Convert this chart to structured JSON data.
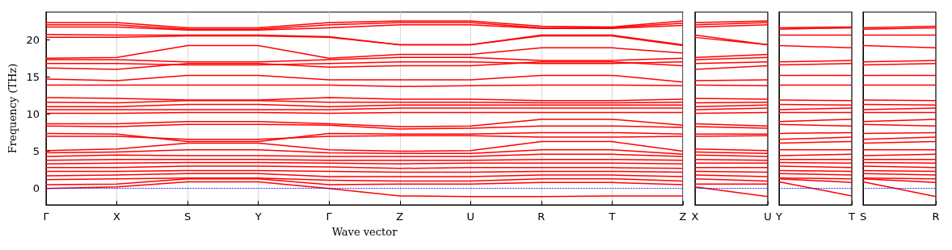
{
  "chart_data": [
    {
      "type": "line",
      "xlabel": "Wave vector",
      "ylabel": "Frequency (THz)",
      "ylim": [
        -2.2,
        23.7
      ],
      "yticks": [
        0,
        5,
        10,
        15,
        20
      ],
      "categories": [
        "Γ",
        "X",
        "S",
        "Y",
        "Γ",
        "Z",
        "U",
        "R",
        "T",
        "Z"
      ],
      "grid": "x",
      "marker": "none",
      "line_style": "solid",
      "ref_lines": [
        {
          "axis": "y",
          "value": 0,
          "color": "#0000ff",
          "line_style": "dotted"
        }
      ],
      "series": [
        {
          "color": "#ff0000",
          "values": [
            22.3,
            22.3,
            21.6,
            21.6,
            22.3,
            22.5,
            22.5,
            21.8,
            21.7,
            22.5
          ]
        },
        {
          "color": "#ff0000",
          "values": [
            22.0,
            22.0,
            21.4,
            21.4,
            22.0,
            22.3,
            22.3,
            21.6,
            21.6,
            22.2
          ]
        },
        {
          "color": "#ff0000",
          "values": [
            21.7,
            21.7,
            21.3,
            21.3,
            21.6,
            22.0,
            22.0,
            21.5,
            21.5,
            21.9
          ]
        },
        {
          "color": "#ff0000",
          "values": [
            20.7,
            20.6,
            20.6,
            20.6,
            20.4,
            19.3,
            19.3,
            20.6,
            20.6,
            19.3
          ]
        },
        {
          "color": "#ff0000",
          "values": [
            20.3,
            20.3,
            20.5,
            20.5,
            20.3,
            19.3,
            19.3,
            20.5,
            20.5,
            19.2
          ]
        },
        {
          "color": "#ff0000",
          "values": [
            17.5,
            17.6,
            19.2,
            19.2,
            17.5,
            18.0,
            18.0,
            18.9,
            18.9,
            18.2
          ]
        },
        {
          "color": "#ff0000",
          "values": [
            17.3,
            17.3,
            17.0,
            17.0,
            17.3,
            17.6,
            17.6,
            17.2,
            17.2,
            17.5
          ]
        },
        {
          "color": "#ff0000",
          "values": [
            16.8,
            16.8,
            16.6,
            16.6,
            16.8,
            17.0,
            17.0,
            16.8,
            16.8,
            17.0
          ]
        },
        {
          "color": "#ff0000",
          "values": [
            16.2,
            16.0,
            16.8,
            16.8,
            16.3,
            16.5,
            16.5,
            17.0,
            17.0,
            16.5
          ]
        },
        {
          "color": "#ff0000",
          "values": [
            14.7,
            14.5,
            15.2,
            15.2,
            14.6,
            14.6,
            14.6,
            15.2,
            15.2,
            14.3
          ]
        },
        {
          "color": "#ff0000",
          "values": [
            13.9,
            13.9,
            13.9,
            13.9,
            13.9,
            13.7,
            13.8,
            13.9,
            13.9,
            13.8
          ]
        },
        {
          "color": "#ff0000",
          "values": [
            12.2,
            12.1,
            11.9,
            11.9,
            12.2,
            12.0,
            12.0,
            11.8,
            11.8,
            12.0
          ]
        },
        {
          "color": "#ff0000",
          "values": [
            11.6,
            11.5,
            11.8,
            11.8,
            11.6,
            11.6,
            11.6,
            11.5,
            11.5,
            11.6
          ]
        },
        {
          "color": "#ff0000",
          "values": [
            11.0,
            11.0,
            11.3,
            11.3,
            11.0,
            11.2,
            11.2,
            11.2,
            11.2,
            11.2
          ]
        },
        {
          "color": "#ff0000",
          "values": [
            10.6,
            10.6,
            10.6,
            10.6,
            10.6,
            10.8,
            10.8,
            10.8,
            10.8,
            10.8
          ]
        },
        {
          "color": "#ff0000",
          "values": [
            10.1,
            10.1,
            10.2,
            10.2,
            10.1,
            10.2,
            10.2,
            10.2,
            10.2,
            10.2
          ]
        },
        {
          "color": "#ff0000",
          "values": [
            8.7,
            8.7,
            9.0,
            9.0,
            8.7,
            8.3,
            8.4,
            9.3,
            9.3,
            8.5
          ]
        },
        {
          "color": "#ff0000",
          "values": [
            8.4,
            8.3,
            8.6,
            8.6,
            8.5,
            8.0,
            8.1,
            8.4,
            8.4,
            8.2
          ]
        },
        {
          "color": "#ff0000",
          "values": [
            7.4,
            7.3,
            6.3,
            6.3,
            7.4,
            7.3,
            7.3,
            7.5,
            7.5,
            7.3
          ]
        },
        {
          "color": "#ff0000",
          "values": [
            7.0,
            7.0,
            6.6,
            6.6,
            7.0,
            7.1,
            7.1,
            6.9,
            6.9,
            7.0
          ]
        },
        {
          "color": "#ff0000",
          "values": [
            5.1,
            5.3,
            6.1,
            6.1,
            5.2,
            5.0,
            5.1,
            6.3,
            6.3,
            5.0
          ]
        },
        {
          "color": "#ff0000",
          "values": [
            4.8,
            4.9,
            5.2,
            5.2,
            4.8,
            4.7,
            4.7,
            5.2,
            5.2,
            4.6
          ]
        },
        {
          "color": "#ff0000",
          "values": [
            4.3,
            4.5,
            4.4,
            4.4,
            4.3,
            4.3,
            4.3,
            4.6,
            4.6,
            4.3
          ]
        },
        {
          "color": "#ff0000",
          "values": [
            3.8,
            3.9,
            3.9,
            3.9,
            3.8,
            3.8,
            3.8,
            3.9,
            3.9,
            3.8
          ]
        },
        {
          "color": "#ff0000",
          "values": [
            3.3,
            3.4,
            3.5,
            3.5,
            3.4,
            3.3,
            3.4,
            3.4,
            3.4,
            3.3
          ]
        },
        {
          "color": "#ff0000",
          "values": [
            2.8,
            2.8,
            3.0,
            3.0,
            2.9,
            2.7,
            2.8,
            2.8,
            2.8,
            2.7
          ]
        },
        {
          "color": "#ff0000",
          "values": [
            2.3,
            2.3,
            2.4,
            2.4,
            2.3,
            2.2,
            2.2,
            2.3,
            2.3,
            2.2
          ]
        },
        {
          "color": "#ff0000",
          "values": [
            1.7,
            1.8,
            2.0,
            2.0,
            1.6,
            1.6,
            1.6,
            1.8,
            1.8,
            1.6
          ]
        },
        {
          "color": "#ff0000",
          "values": [
            1.2,
            1.3,
            1.4,
            1.4,
            1.1,
            1.0,
            1.0,
            1.3,
            1.3,
            1.0
          ]
        },
        {
          "color": "#ff0000",
          "values": [
            0.5,
            0.6,
            1.3,
            1.3,
            0.5,
            0.6,
            0.6,
            0.8,
            0.8,
            0.5
          ]
        },
        {
          "color": "#ff0000",
          "values": [
            0.0,
            0.2,
            0.9,
            0.9,
            0.0,
            -1.0,
            -1.1,
            -1.1,
            -1.0,
            -1.0
          ]
        }
      ]
    },
    {
      "type": "line",
      "ylim": [
        -2.2,
        23.7
      ],
      "yticks": [
        0,
        5,
        10,
        15,
        20
      ],
      "categories": [
        "X",
        "U"
      ],
      "tick_labels": "x",
      "marker": "none",
      "line_style": "solid",
      "ref_lines": [
        {
          "axis": "y",
          "value": 0,
          "color": "#0000ff",
          "line_style": "dotted"
        }
      ],
      "series": [
        {
          "color": "#ff0000",
          "values": [
            22.3,
            22.5
          ]
        },
        {
          "color": "#ff0000",
          "values": [
            22.0,
            22.3
          ]
        },
        {
          "color": "#ff0000",
          "values": [
            21.7,
            22.0
          ]
        },
        {
          "color": "#ff0000",
          "values": [
            20.6,
            19.3
          ]
        },
        {
          "color": "#ff0000",
          "values": [
            20.3,
            19.3
          ]
        },
        {
          "color": "#ff0000",
          "values": [
            17.6,
            18.0
          ]
        },
        {
          "color": "#ff0000",
          "values": [
            17.3,
            17.6
          ]
        },
        {
          "color": "#ff0000",
          "values": [
            16.8,
            17.0
          ]
        },
        {
          "color": "#ff0000",
          "values": [
            16.0,
            16.5
          ]
        },
        {
          "color": "#ff0000",
          "values": [
            14.5,
            14.6
          ]
        },
        {
          "color": "#ff0000",
          "values": [
            13.9,
            13.8
          ]
        },
        {
          "color": "#ff0000",
          "values": [
            12.1,
            12.0
          ]
        },
        {
          "color": "#ff0000",
          "values": [
            11.5,
            11.6
          ]
        },
        {
          "color": "#ff0000",
          "values": [
            11.0,
            11.2
          ]
        },
        {
          "color": "#ff0000",
          "values": [
            10.6,
            10.8
          ]
        },
        {
          "color": "#ff0000",
          "values": [
            10.1,
            10.2
          ]
        },
        {
          "color": "#ff0000",
          "values": [
            8.7,
            8.4
          ]
        },
        {
          "color": "#ff0000",
          "values": [
            8.3,
            8.1
          ]
        },
        {
          "color": "#ff0000",
          "values": [
            7.3,
            7.3
          ]
        },
        {
          "color": "#ff0000",
          "values": [
            7.0,
            7.1
          ]
        },
        {
          "color": "#ff0000",
          "values": [
            5.3,
            5.1
          ]
        },
        {
          "color": "#ff0000",
          "values": [
            4.9,
            4.7
          ]
        },
        {
          "color": "#ff0000",
          "values": [
            4.5,
            4.3
          ]
        },
        {
          "color": "#ff0000",
          "values": [
            3.9,
            3.8
          ]
        },
        {
          "color": "#ff0000",
          "values": [
            3.4,
            3.4
          ]
        },
        {
          "color": "#ff0000",
          "values": [
            2.8,
            2.8
          ]
        },
        {
          "color": "#ff0000",
          "values": [
            2.3,
            2.2
          ]
        },
        {
          "color": "#ff0000",
          "values": [
            1.8,
            1.6
          ]
        },
        {
          "color": "#ff0000",
          "values": [
            1.3,
            1.0
          ]
        },
        {
          "color": "#ff0000",
          "values": [
            0.6,
            0.6
          ]
        },
        {
          "color": "#ff0000",
          "values": [
            0.2,
            -1.1
          ]
        }
      ]
    },
    {
      "type": "line",
      "ylim": [
        -2.2,
        23.7
      ],
      "yticks": [
        0,
        5,
        10,
        15,
        20
      ],
      "categories": [
        "Y",
        "T"
      ],
      "tick_labels": "x",
      "marker": "none",
      "line_style": "solid",
      "ref_lines": [
        {
          "axis": "y",
          "value": 0,
          "color": "#0000ff",
          "line_style": "dotted"
        }
      ],
      "series": [
        {
          "color": "#ff0000",
          "values": [
            21.6,
            21.7
          ]
        },
        {
          "color": "#ff0000",
          "values": [
            21.4,
            21.6
          ]
        },
        {
          "color": "#ff0000",
          "values": [
            20.6,
            20.6
          ]
        },
        {
          "color": "#ff0000",
          "values": [
            19.2,
            18.9
          ]
        },
        {
          "color": "#ff0000",
          "values": [
            17.0,
            17.2
          ]
        },
        {
          "color": "#ff0000",
          "values": [
            16.6,
            16.8
          ]
        },
        {
          "color": "#ff0000",
          "values": [
            15.2,
            15.2
          ]
        },
        {
          "color": "#ff0000",
          "values": [
            13.9,
            13.9
          ]
        },
        {
          "color": "#ff0000",
          "values": [
            11.9,
            11.8
          ]
        },
        {
          "color": "#ff0000",
          "values": [
            11.3,
            11.2
          ]
        },
        {
          "color": "#ff0000",
          "values": [
            10.6,
            10.8
          ]
        },
        {
          "color": "#ff0000",
          "values": [
            10.2,
            10.2
          ]
        },
        {
          "color": "#ff0000",
          "values": [
            9.0,
            9.3
          ]
        },
        {
          "color": "#ff0000",
          "values": [
            8.6,
            8.4
          ]
        },
        {
          "color": "#ff0000",
          "values": [
            7.4,
            7.5
          ]
        },
        {
          "color": "#ff0000",
          "values": [
            6.6,
            6.9
          ]
        },
        {
          "color": "#ff0000",
          "values": [
            6.1,
            6.3
          ]
        },
        {
          "color": "#ff0000",
          "values": [
            5.2,
            5.2
          ]
        },
        {
          "color": "#ff0000",
          "values": [
            4.4,
            4.6
          ]
        },
        {
          "color": "#ff0000",
          "values": [
            3.9,
            3.9
          ]
        },
        {
          "color": "#ff0000",
          "values": [
            3.5,
            3.4
          ]
        },
        {
          "color": "#ff0000",
          "values": [
            3.0,
            2.8
          ]
        },
        {
          "color": "#ff0000",
          "values": [
            2.4,
            2.3
          ]
        },
        {
          "color": "#ff0000",
          "values": [
            2.0,
            1.8
          ]
        },
        {
          "color": "#ff0000",
          "values": [
            1.4,
            1.3
          ]
        },
        {
          "color": "#ff0000",
          "values": [
            1.3,
            0.8
          ]
        },
        {
          "color": "#ff0000",
          "values": [
            0.9,
            -1.0
          ]
        }
      ]
    },
    {
      "type": "line",
      "ylim": [
        -2.2,
        23.7
      ],
      "yticks": [
        0,
        5,
        10,
        15,
        20
      ],
      "categories": [
        "S",
        "R"
      ],
      "tick_labels": "x",
      "marker": "none",
      "line_style": "solid",
      "ref_lines": [
        {
          "axis": "y",
          "value": 0,
          "color": "#0000ff",
          "line_style": "dotted"
        }
      ],
      "series": [
        {
          "color": "#ff0000",
          "values": [
            21.6,
            21.8
          ]
        },
        {
          "color": "#ff0000",
          "values": [
            21.4,
            21.6
          ]
        },
        {
          "color": "#ff0000",
          "values": [
            20.6,
            20.6
          ]
        },
        {
          "color": "#ff0000",
          "values": [
            19.2,
            18.9
          ]
        },
        {
          "color": "#ff0000",
          "values": [
            17.0,
            17.2
          ]
        },
        {
          "color": "#ff0000",
          "values": [
            16.6,
            16.8
          ]
        },
        {
          "color": "#ff0000",
          "values": [
            15.2,
            15.2
          ]
        },
        {
          "color": "#ff0000",
          "values": [
            13.9,
            13.9
          ]
        },
        {
          "color": "#ff0000",
          "values": [
            11.9,
            11.8
          ]
        },
        {
          "color": "#ff0000",
          "values": [
            11.3,
            11.2
          ]
        },
        {
          "color": "#ff0000",
          "values": [
            10.6,
            10.8
          ]
        },
        {
          "color": "#ff0000",
          "values": [
            10.2,
            10.2
          ]
        },
        {
          "color": "#ff0000",
          "values": [
            9.0,
            9.3
          ]
        },
        {
          "color": "#ff0000",
          "values": [
            8.6,
            8.4
          ]
        },
        {
          "color": "#ff0000",
          "values": [
            7.4,
            7.5
          ]
        },
        {
          "color": "#ff0000",
          "values": [
            6.6,
            6.9
          ]
        },
        {
          "color": "#ff0000",
          "values": [
            6.1,
            6.3
          ]
        },
        {
          "color": "#ff0000",
          "values": [
            5.2,
            5.2
          ]
        },
        {
          "color": "#ff0000",
          "values": [
            4.4,
            4.6
          ]
        },
        {
          "color": "#ff0000",
          "values": [
            3.9,
            3.9
          ]
        },
        {
          "color": "#ff0000",
          "values": [
            3.5,
            3.4
          ]
        },
        {
          "color": "#ff0000",
          "values": [
            3.0,
            2.8
          ]
        },
        {
          "color": "#ff0000",
          "values": [
            2.4,
            2.3
          ]
        },
        {
          "color": "#ff0000",
          "values": [
            2.0,
            1.8
          ]
        },
        {
          "color": "#ff0000",
          "values": [
            1.4,
            1.3
          ]
        },
        {
          "color": "#ff0000",
          "values": [
            1.3,
            0.8
          ]
        },
        {
          "color": "#ff0000",
          "values": [
            0.9,
            -1.1
          ]
        }
      ]
    }
  ]
}
